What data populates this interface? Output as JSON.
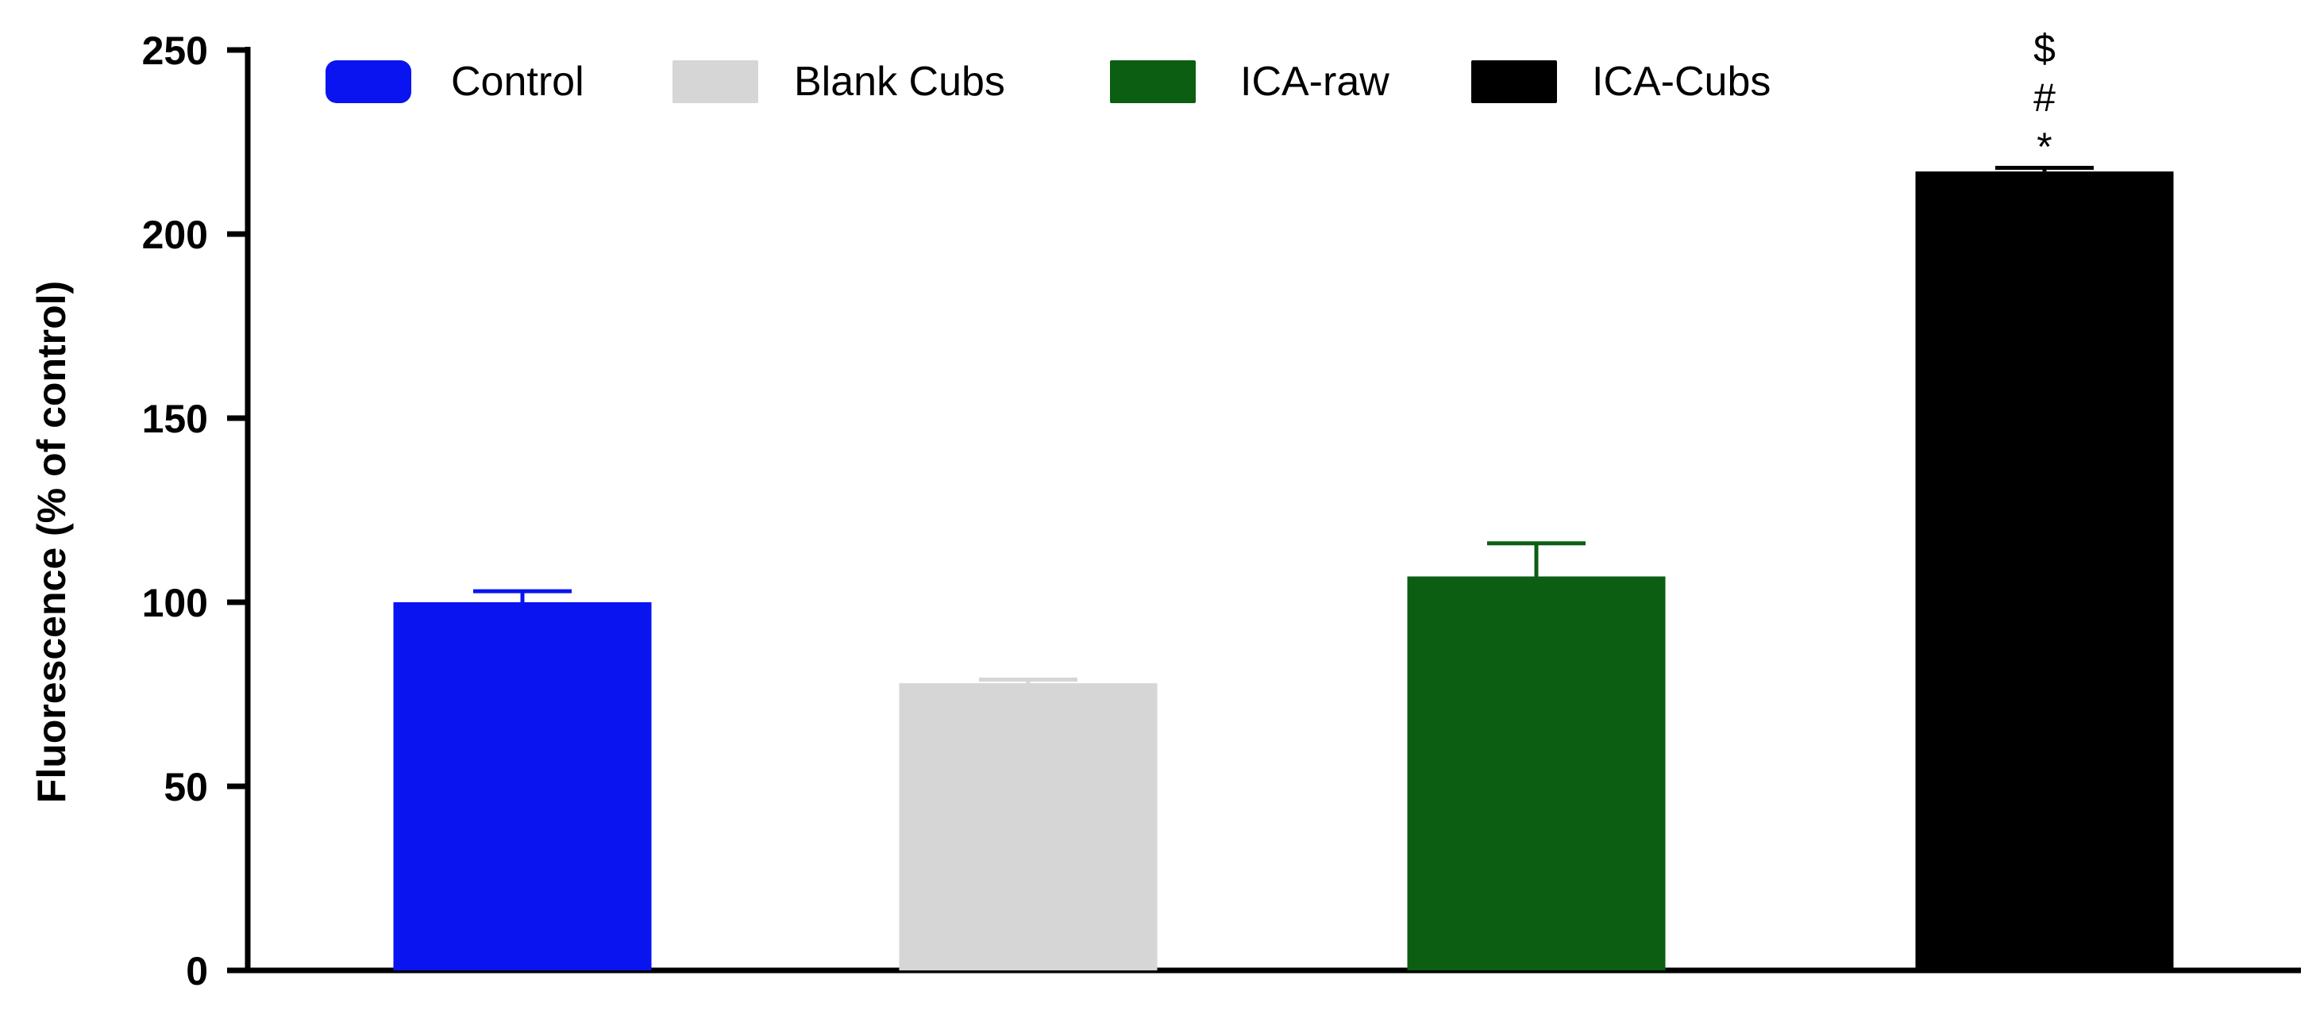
{
  "chart_data": {
    "type": "bar",
    "title": "",
    "xlabel": "",
    "ylabel": "Fluorescence  (% of control)",
    "ylim": [
      0,
      250
    ],
    "yticks": [
      0,
      50,
      100,
      150,
      200,
      250
    ],
    "grid": false,
    "legend_position": "top",
    "categories": [
      "Control",
      "Blank Cubs",
      "ICA-raw",
      "ICA-Cubs"
    ],
    "values": [
      100,
      78,
      107,
      217
    ],
    "errors": [
      3,
      1,
      9,
      1
    ],
    "colors": [
      "#0a14f0",
      "#d6d6d6",
      "#0b5e12",
      "#000000"
    ],
    "legend": [
      {
        "label": "Control",
        "color": "#0a14f0"
      },
      {
        "label": "Blank Cubs",
        "color": "#d6d6d6"
      },
      {
        "label": "ICA-raw",
        "color": "#0b5e12"
      },
      {
        "label": "ICA-Cubs",
        "color": "#000000"
      }
    ],
    "annotations": [
      {
        "category": "ICA-Cubs",
        "lines": [
          "$",
          "#",
          "*"
        ]
      }
    ]
  }
}
